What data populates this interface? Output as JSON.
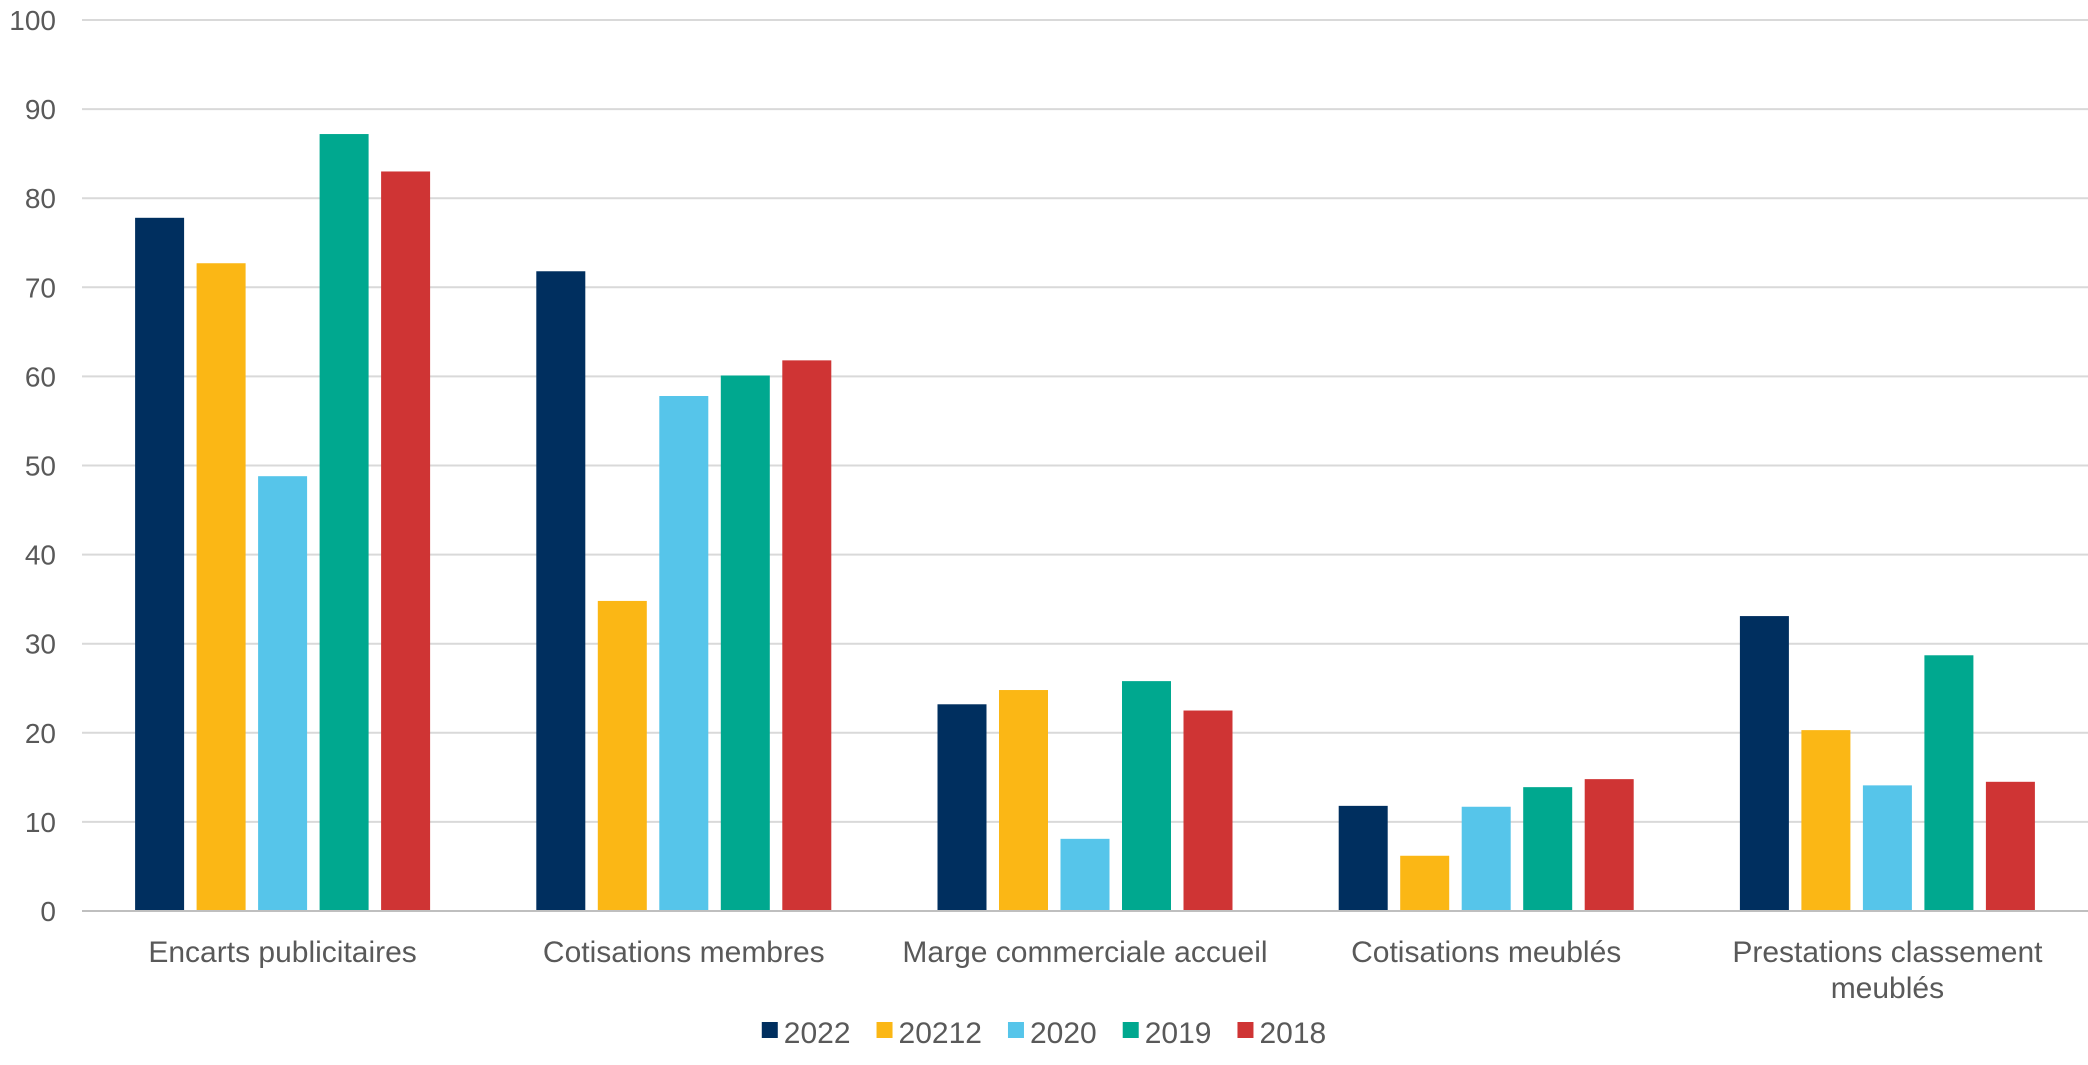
{
  "chart_data": {
    "type": "bar",
    "categories": [
      [
        "Encarts publicitaires"
      ],
      [
        "Cotisations membres"
      ],
      [
        "Marge commerciale accueil"
      ],
      [
        "Cotisations meublés"
      ],
      [
        "Prestations classement",
        "meublés"
      ]
    ],
    "series": [
      {
        "name": "2022",
        "color": "#002f5f",
        "values": [
          77.8,
          71.8,
          23.2,
          11.8,
          33.1
        ]
      },
      {
        "name": "20212",
        "color": "#fbb715",
        "values": [
          72.7,
          34.8,
          24.8,
          6.2,
          20.3
        ]
      },
      {
        "name": "2020",
        "color": "#56c5ea",
        "values": [
          48.8,
          57.8,
          8.1,
          11.7,
          14.1
        ]
      },
      {
        "name": "2019",
        "color": "#00a88f",
        "values": [
          87.2,
          60.1,
          25.8,
          13.9,
          28.7
        ]
      },
      {
        "name": "2018",
        "color": "#cf3434",
        "values": [
          83.0,
          61.8,
          22.5,
          14.8,
          14.5
        ]
      }
    ],
    "ylim": [
      0,
      100
    ],
    "yticks": [
      "0",
      "10",
      "20",
      "30",
      "40",
      "50",
      "60",
      "70",
      "80",
      "90",
      "100"
    ],
    "grid": true,
    "legend_position": "bottom-center"
  }
}
